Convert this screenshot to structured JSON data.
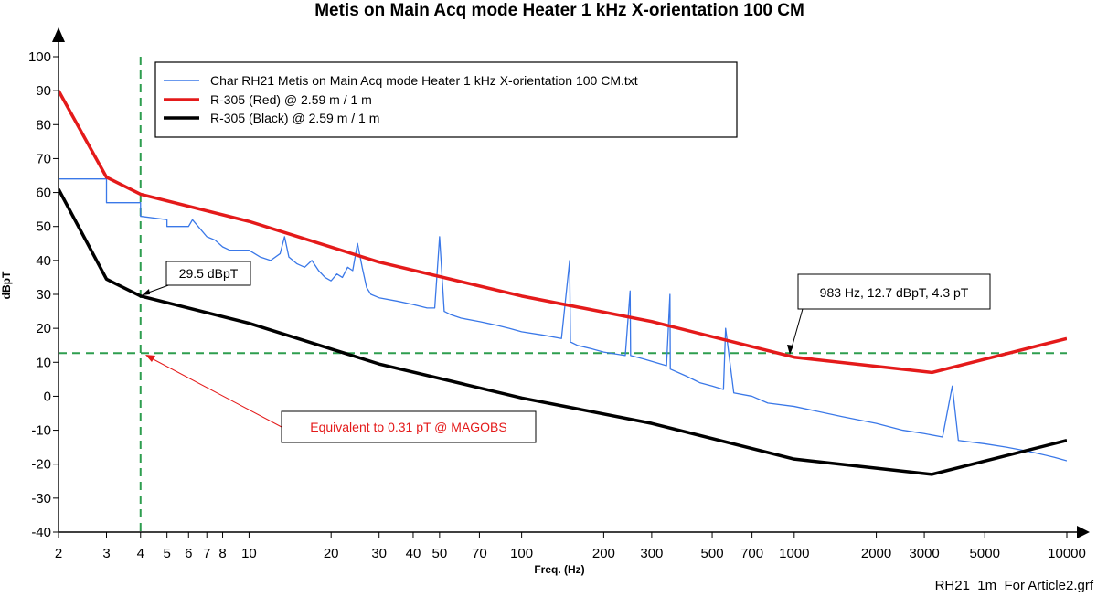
{
  "chart_data": {
    "type": "line",
    "title": "Metis on Main Acq mode Heater 1 kHz X-orientation 100 CM",
    "xlabel": "Freq. (Hz)",
    "ylabel": "dBpT",
    "xscale": "log",
    "xlim": [
      2,
      10000
    ],
    "ylim": [
      -40,
      100
    ],
    "x_ticks": [
      2,
      3,
      4,
      5,
      6,
      7,
      8,
      10,
      20,
      30,
      40,
      50,
      70,
      100,
      200,
      300,
      500,
      700,
      1000,
      2000,
      3000,
      5000,
      10000
    ],
    "x_tick_labels": [
      "2",
      "3",
      "4",
      "5",
      "6",
      "7",
      "8",
      "10",
      "20",
      "30",
      "40",
      "50",
      "70",
      "100",
      "200",
      "300",
      "500",
      "700",
      "1000",
      "2000",
      "3000",
      "5000",
      "10000"
    ],
    "y_ticks": [
      100,
      90,
      80,
      70,
      60,
      50,
      40,
      30,
      20,
      10,
      0,
      -10,
      -20,
      -30,
      -40
    ],
    "y_tick_labels": [
      "100",
      "90",
      "80",
      "70",
      "60",
      "50",
      "40",
      "30",
      "20",
      "10",
      "0",
      "-10",
      "-20",
      "-30",
      "-40"
    ],
    "legend_position": "top-left",
    "series": [
      {
        "name": "Char RH21 Metis on Main Acq mode Heater 1 kHz X-orientation 100 CM.txt",
        "color": "#3a78e8",
        "x": [
          2,
          3,
          3,
          4,
          4,
          5,
          5,
          6,
          6.2,
          7,
          7.5,
          8,
          8.5,
          10,
          11,
          12,
          13,
          13.5,
          14,
          15,
          16,
          17,
          18,
          19,
          20,
          21,
          22,
          23,
          24,
          25,
          26,
          27,
          28,
          30,
          35,
          40,
          45,
          48,
          50,
          52,
          55,
          60,
          70,
          80,
          90,
          100,
          120,
          140,
          150,
          151,
          160,
          180,
          200,
          240,
          250,
          251,
          280,
          340,
          350,
          351,
          400,
          450,
          500,
          550,
          560,
          600,
          700,
          800,
          1000,
          1500,
          2000,
          2500,
          3000,
          3500,
          3800,
          4000,
          5000,
          6000,
          7000,
          8000,
          9000,
          10000
        ],
        "values": [
          64,
          64,
          57,
          57,
          53,
          52,
          50,
          50,
          52,
          47,
          46,
          44,
          43,
          43,
          41,
          40,
          42,
          47,
          41,
          39,
          38,
          40,
          37,
          35,
          34,
          36,
          35,
          38,
          37,
          45,
          38,
          32,
          30,
          29,
          28,
          27,
          26,
          26,
          47,
          25,
          24,
          23,
          22,
          21,
          20,
          19,
          18,
          17,
          40,
          16,
          15,
          14,
          13,
          12,
          31,
          12,
          11,
          9,
          30,
          8,
          6,
          4,
          3,
          2,
          20,
          1,
          0,
          -2,
          -3,
          -6,
          -8,
          -10,
          -11,
          -12,
          3,
          -13,
          -14,
          -15,
          -16,
          -17,
          -18,
          -19
        ]
      },
      {
        "name": "R-305 (Red) @ 2.59 m / 1 m",
        "color": "#e41a1a",
        "x": [
          2,
          3,
          4,
          10,
          30,
          100,
          300,
          1000,
          3200,
          10000
        ],
        "values": [
          90,
          64.5,
          59.5,
          51.5,
          39.5,
          29.5,
          22,
          11.5,
          7,
          17
        ]
      },
      {
        "name": "R-305 (Black) @ 2.59 m / 1 m",
        "color": "#000000",
        "x": [
          2,
          3,
          4,
          10,
          30,
          100,
          300,
          1000,
          3200,
          10000
        ],
        "values": [
          61,
          34.5,
          29.5,
          21.5,
          9.5,
          -0.5,
          -8,
          -18.5,
          -23,
          -13
        ]
      }
    ],
    "reference_lines": [
      {
        "kind": "vertical",
        "x": 4,
        "color": "#2e9e4f"
      },
      {
        "kind": "horizontal",
        "y": 12.7,
        "color": "#2e9e4f"
      }
    ],
    "annotations": [
      {
        "text": "29.5 dBpT",
        "x": 4,
        "y": 29.5,
        "color": "#000000"
      },
      {
        "text": "983 Hz, 12.7 dBpT, 4.3 pT",
        "x": 983,
        "y": 12.7,
        "color": "#000000"
      },
      {
        "text": "Equivalent to 0.31 pT @ MAGOBS",
        "x": 4,
        "y": 12.7,
        "color": "#e41a1a"
      }
    ],
    "footer": "RH21_1m_For Article2.grf"
  }
}
